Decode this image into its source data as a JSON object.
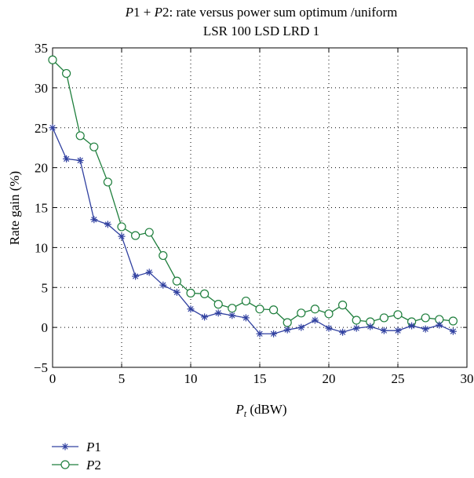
{
  "chart_data": {
    "type": "line",
    "title": {
      "line1_parts": [
        {
          "text": "P",
          "italic": true
        },
        {
          "text": "1 + ",
          "italic": false
        },
        {
          "text": "P",
          "italic": true
        },
        {
          "text": "2: rate versus power sum optimum /uniform",
          "italic": false
        }
      ],
      "line2": "LSR 100 LSD LRD 1"
    },
    "xlabel": {
      "symbol": "P",
      "subscript": "t",
      "unit": " (dBW)"
    },
    "ylabel": "Rate gain (%)",
    "xlim": [
      0,
      30
    ],
    "ylim": [
      -5,
      35
    ],
    "xticks": [
      0,
      5,
      10,
      15,
      20,
      25,
      30
    ],
    "yticks": [
      -5,
      0,
      5,
      10,
      15,
      20,
      25,
      30,
      35
    ],
    "grid": true,
    "legend_position": "below-left",
    "x": [
      0,
      1,
      2,
      3,
      4,
      5,
      6,
      7,
      8,
      9,
      10,
      11,
      12,
      13,
      14,
      15,
      16,
      17,
      18,
      19,
      20,
      21,
      22,
      23,
      24,
      25,
      26,
      27,
      28,
      29
    ],
    "series": [
      {
        "name": "P1",
        "name_parts": [
          {
            "text": "P",
            "italic": true
          },
          {
            "text": "1",
            "italic": false
          }
        ],
        "color": "#3040a0",
        "marker": "star",
        "values": [
          25.0,
          21.1,
          20.9,
          13.5,
          12.9,
          11.4,
          6.4,
          6.9,
          5.3,
          4.4,
          2.3,
          1.3,
          1.8,
          1.5,
          1.2,
          -0.8,
          -0.8,
          -0.3,
          0.0,
          0.9,
          -0.1,
          -0.6,
          -0.1,
          0.1,
          -0.4,
          -0.4,
          0.2,
          -0.2,
          0.3,
          -0.5
        ]
      },
      {
        "name": "P2",
        "name_parts": [
          {
            "text": "P",
            "italic": true
          },
          {
            "text": "2",
            "italic": false
          }
        ],
        "color": "#1e7e3c",
        "marker": "circle",
        "values": [
          33.5,
          31.8,
          24.0,
          22.6,
          18.2,
          12.6,
          11.5,
          11.9,
          9.0,
          5.8,
          4.3,
          4.2,
          2.9,
          2.4,
          3.3,
          2.3,
          2.2,
          0.6,
          1.8,
          2.3,
          1.7,
          2.8,
          0.9,
          0.7,
          1.2,
          1.6,
          0.7,
          1.2,
          1.0,
          0.8
        ]
      }
    ]
  }
}
